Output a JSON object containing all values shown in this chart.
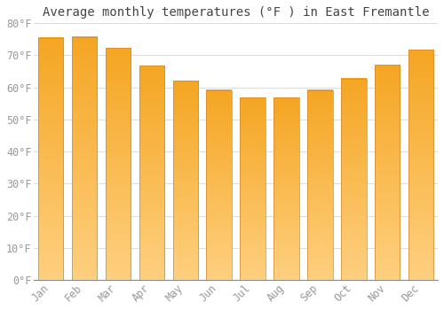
{
  "title": "Average monthly temperatures (°F ) in East Fremantle",
  "months": [
    "Jan",
    "Feb",
    "Mar",
    "Apr",
    "May",
    "Jun",
    "Jul",
    "Aug",
    "Sep",
    "Oct",
    "Nov",
    "Dec"
  ],
  "values": [
    75.5,
    75.7,
    72.3,
    66.7,
    62.0,
    59.2,
    56.8,
    56.8,
    59.2,
    62.8,
    67.0,
    71.8
  ],
  "bar_color_top": "#F5A623",
  "bar_color_bottom": "#FFD080",
  "bar_edge_color": "#D4882A",
  "background_color": "#FFFFFF",
  "grid_color": "#DDDDDD",
  "text_color": "#999999",
  "title_color": "#444444",
  "ylim": [
    0,
    80
  ],
  "yticks": [
    0,
    10,
    20,
    30,
    40,
    50,
    60,
    70,
    80
  ],
  "title_fontsize": 10,
  "tick_fontsize": 8.5,
  "bar_width": 0.75
}
